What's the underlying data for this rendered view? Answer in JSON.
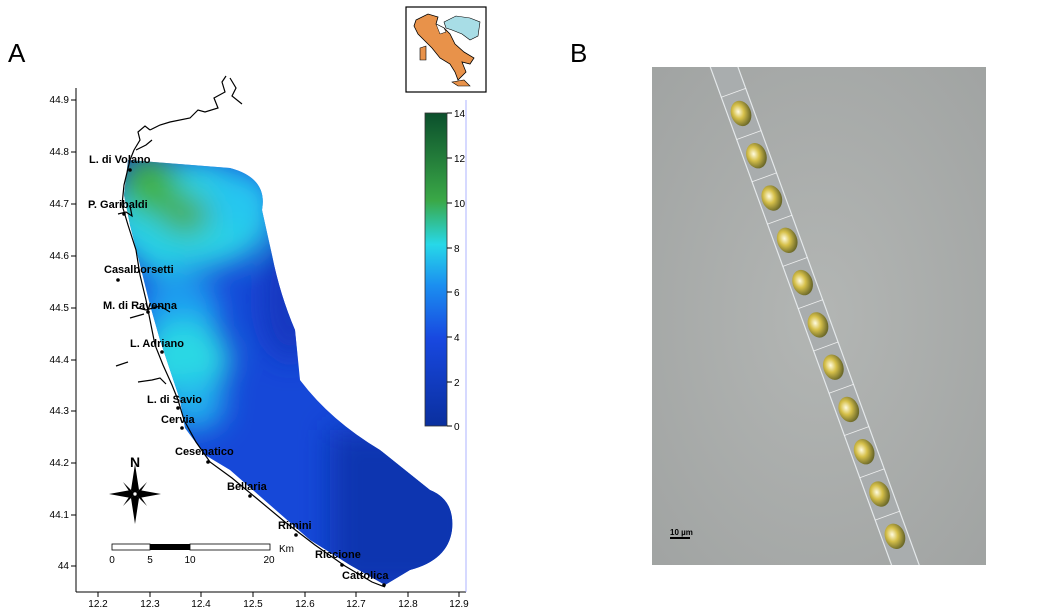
{
  "panels": {
    "left": "A",
    "right": "B"
  },
  "axes": {
    "x_ticks": [
      "12.2",
      "12.3",
      "12.4",
      "12.5",
      "12.6",
      "12.7",
      "12.8",
      "12.9"
    ],
    "y_ticks": [
      "44.9",
      "44.8",
      "44.7",
      "44.6",
      "44.5",
      "44.4",
      "44.3",
      "44.2",
      "44.1",
      "44"
    ]
  },
  "colorbar": {
    "ticks": [
      "14",
      "12",
      "10",
      "8",
      "6",
      "4",
      "2",
      "0"
    ],
    "colors": {
      "low": "#0a2f9e",
      "mid": "#1848e0",
      "cyan": "#27d8e8",
      "green": "#3aa847",
      "high": "#0b4f2c"
    }
  },
  "places": [
    "L. di Volano",
    "P. Garibaldi",
    "Casalborsetti",
    "M. di Ravenna",
    "L. Adriano",
    "L. di Savio",
    "Cervia",
    "Cesenatico",
    "Bellaria",
    "Rimini",
    "Riccione",
    "Cattolica"
  ],
  "compass": {
    "label": "N"
  },
  "scalebar": {
    "ticks": [
      "0",
      "5",
      "10",
      "20"
    ],
    "unit": "Km"
  },
  "inset": {
    "region_color": "#e8924a",
    "sea_color": "#a8dde6"
  },
  "micrograph": {
    "scale_label": "10 µm"
  }
}
